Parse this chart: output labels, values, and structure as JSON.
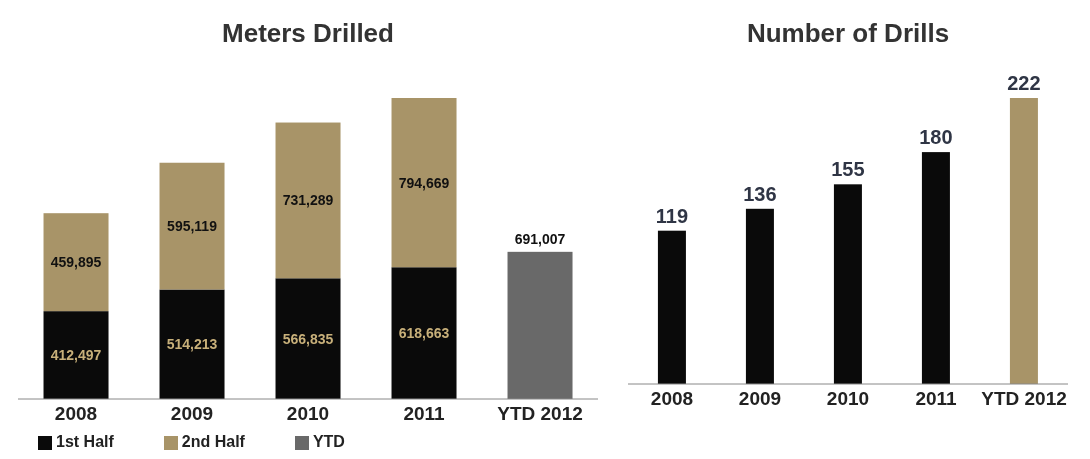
{
  "chart_data": [
    {
      "type": "bar",
      "title": "Meters Drilled",
      "categories": [
        "2008",
        "2009",
        "2010",
        "2011",
        "YTD 2012"
      ],
      "stacked": true,
      "data_labels": true,
      "legend": "bottom left",
      "series": [
        {
          "name": "1st Half",
          "color": "#0a0a0a",
          "values": [
            412497,
            514213,
            566835,
            618663,
            null
          ],
          "value_labels": [
            "412,497",
            "514,213",
            "566,835",
            "618,663",
            null
          ]
        },
        {
          "name": "2nd Half",
          "color": "#a89468",
          "values": [
            459895,
            595119,
            731289,
            794669,
            null
          ],
          "value_labels": [
            "459,895",
            "595,119",
            "731,289",
            "794,669",
            null
          ]
        },
        {
          "name": "YTD",
          "color": "#696969",
          "values": [
            null,
            null,
            null,
            null,
            691007
          ],
          "value_labels": [
            null,
            null,
            null,
            null,
            "691,007"
          ]
        }
      ]
    },
    {
      "type": "bar",
      "title": "Number of Drills",
      "categories": [
        "2008",
        "2009",
        "2010",
        "2011",
        "YTD 2012"
      ],
      "data_labels": true,
      "values": [
        119,
        136,
        155,
        180,
        222
      ],
      "colors": [
        "#0a0a0a",
        "#0a0a0a",
        "#0a0a0a",
        "#0a0a0a",
        "#a89468"
      ]
    }
  ]
}
